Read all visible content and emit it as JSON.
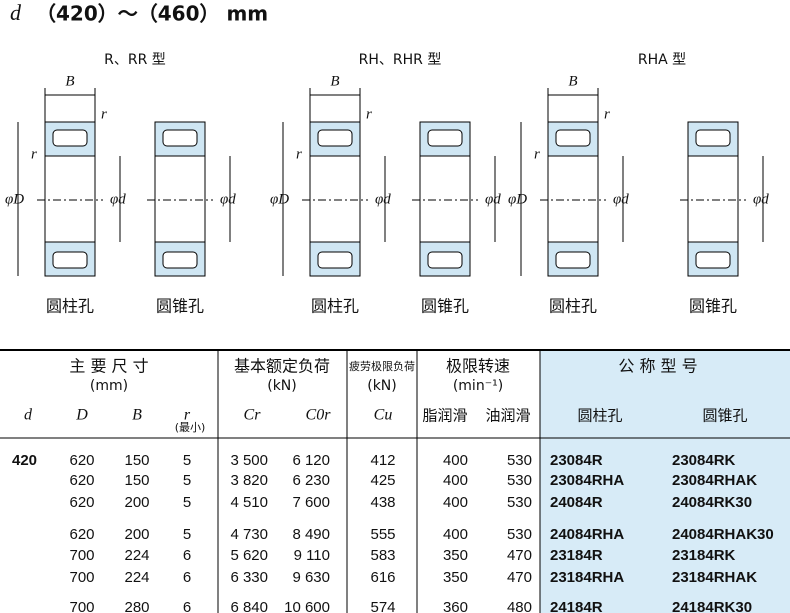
{
  "header": {
    "symbol": "d",
    "title": "（420）～（460） mm"
  },
  "diagrams": {
    "dimension_labels": {
      "B": "B",
      "r": "r",
      "D": "φD",
      "d": "φd"
    },
    "groups": [
      {
        "label": "R、RR 型",
        "bores": [
          "圆柱孔",
          "圆锥孔"
        ]
      },
      {
        "label": "RH、RHR 型",
        "bores": [
          "圆柱孔",
          "圆锥孔"
        ]
      },
      {
        "label": "RHA 型",
        "bores": [
          "圆柱孔",
          "圆锥孔"
        ]
      }
    ]
  },
  "table": {
    "group_headers": [
      {
        "title": "主 要 尺 寸",
        "unit": "(mm)"
      },
      {
        "title": "基本额定负荷",
        "unit": "(kN)"
      },
      {
        "title": "疲劳极限负荷",
        "unit": "(kN)"
      },
      {
        "title": "极限转速",
        "unit": "(min⁻¹)"
      },
      {
        "title": "公 称 型 号",
        "unit": null
      }
    ],
    "columns": [
      "d",
      "D",
      "B",
      "r",
      "Cr",
      "C0r",
      "Cu",
      "脂润滑",
      "油润滑",
      "圆柱孔",
      "圆锥孔"
    ],
    "r_note": "(最小)",
    "rows": [
      [
        "420",
        "620",
        "150",
        "5",
        "3 500",
        "6 120",
        "412",
        "400",
        "530",
        "23084R",
        "23084RK"
      ],
      [
        null,
        "620",
        "150",
        "5",
        "3 820",
        "6 230",
        "425",
        "400",
        "530",
        "23084RHA",
        "23084RHAK"
      ],
      [
        null,
        "620",
        "200",
        "5",
        "4 510",
        "7 600",
        "438",
        "400",
        "530",
        "24084R",
        "24084RK30"
      ],
      [
        null,
        "620",
        "200",
        "5",
        "4 730",
        "8 490",
        "555",
        "400",
        "530",
        "24084RHA",
        "24084RHAK30"
      ],
      [
        null,
        "700",
        "224",
        "6",
        "5 620",
        "9 110",
        "583",
        "350",
        "470",
        "23184R",
        "23184RK"
      ],
      [
        null,
        "700",
        "224",
        "6",
        "6 330",
        "9 630",
        "616",
        "350",
        "470",
        "23184RHA",
        "23184RHAK"
      ],
      [
        null,
        "700",
        "280",
        "6",
        "6 840",
        "10 600",
        "574",
        "360",
        "480",
        "24184R",
        "24184RK30"
      ]
    ]
  }
}
